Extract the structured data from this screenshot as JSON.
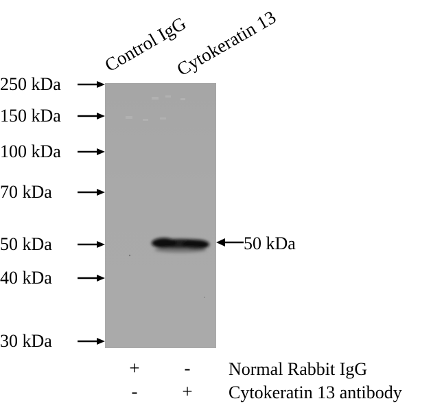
{
  "lanes": [
    "Control IgG",
    "Cytokeratin 13"
  ],
  "markers": [
    "250 kDa",
    "150 kDa",
    "100 kDa",
    "70 kDa",
    "50 kDa",
    "40 kDa",
    "30 kDa"
  ],
  "band": {
    "label": "50 kDa"
  },
  "conditions": [
    {
      "label": "Normal Rabbit IgG",
      "signs": [
        "+",
        "-"
      ]
    },
    {
      "label": "Cytokeratin 13 antibody",
      "signs": [
        "-",
        "+"
      ]
    }
  ]
}
